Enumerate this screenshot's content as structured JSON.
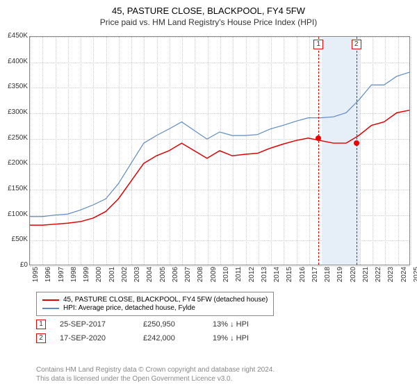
{
  "title": "45, PASTURE CLOSE, BLACKPOOL, FY4 5FW",
  "subtitle": "Price paid vs. HM Land Registry's House Price Index (HPI)",
  "chart": {
    "type": "line",
    "y_axis": {
      "min": 0,
      "max": 450000,
      "step": 50000,
      "ticks": [
        "£0",
        "£50K",
        "£100K",
        "£150K",
        "£200K",
        "£250K",
        "£300K",
        "£350K",
        "£400K",
        "£450K"
      ],
      "label_fontsize": 10
    },
    "x_axis": {
      "years": [
        1995,
        1996,
        1997,
        1998,
        1999,
        2000,
        2001,
        2002,
        2003,
        2004,
        2005,
        2006,
        2007,
        2008,
        2009,
        2010,
        2011,
        2012,
        2013,
        2014,
        2015,
        2016,
        2017,
        2018,
        2019,
        2020,
        2021,
        2022,
        2023,
        2024,
        2025
      ],
      "label_fontsize": 10
    },
    "grid_color": "#cccccc",
    "border_color": "#888888",
    "background_color": "#ffffff",
    "series": [
      {
        "name": "price_paid",
        "label": "45, PASTURE CLOSE, BLACKPOOL, FY4 5FW (detached house)",
        "color": "#e00000",
        "width": 1.5,
        "values_by_year": {
          "1995": 78000,
          "1996": 78000,
          "1997": 80000,
          "1998": 82000,
          "1999": 85000,
          "2000": 92000,
          "2001": 105000,
          "2002": 130000,
          "2003": 165000,
          "2004": 200000,
          "2005": 215000,
          "2006": 225000,
          "2007": 240000,
          "2008": 225000,
          "2009": 210000,
          "2010": 225000,
          "2011": 215000,
          "2012": 218000,
          "2013": 220000,
          "2014": 230000,
          "2015": 238000,
          "2016": 245000,
          "2017": 250000,
          "2018": 245000,
          "2019": 240000,
          "2020": 240000,
          "2021": 255000,
          "2022": 275000,
          "2023": 282000,
          "2024": 300000,
          "2025": 305000
        }
      },
      {
        "name": "hpi",
        "label": "HPI: Average price, detached house, Fylde",
        "color": "#5b8bc5",
        "width": 1.2,
        "values_by_year": {
          "1995": 95000,
          "1996": 95000,
          "1997": 98000,
          "1998": 100000,
          "1999": 108000,
          "2000": 118000,
          "2001": 130000,
          "2002": 160000,
          "2003": 200000,
          "2004": 240000,
          "2005": 255000,
          "2006": 268000,
          "2007": 282000,
          "2008": 265000,
          "2009": 248000,
          "2010": 262000,
          "2011": 255000,
          "2012": 255000,
          "2013": 257000,
          "2014": 268000,
          "2015": 275000,
          "2016": 283000,
          "2017": 290000,
          "2018": 290000,
          "2019": 292000,
          "2020": 300000,
          "2021": 325000,
          "2022": 355000,
          "2023": 355000,
          "2024": 372000,
          "2025": 380000
        }
      }
    ],
    "shaded_region": {
      "start_year": 2018,
      "end_year": 2021,
      "color": "#e6eef7"
    },
    "sale_markers": [
      {
        "id": "1",
        "year": 2017.73,
        "value": 250950
      },
      {
        "id": "2",
        "year": 2020.71,
        "value": 242000
      }
    ]
  },
  "sales": [
    {
      "id": "1",
      "date": "25-SEP-2017",
      "price": "£250,950",
      "delta": "13% ↓ HPI"
    },
    {
      "id": "2",
      "date": "17-SEP-2020",
      "price": "£242,000",
      "delta": "19% ↓ HPI"
    }
  ],
  "footer": {
    "line1": "Contains HM Land Registry data © Crown copyright and database right 2024.",
    "line2": "This data is licensed under the Open Government Licence v3.0."
  }
}
